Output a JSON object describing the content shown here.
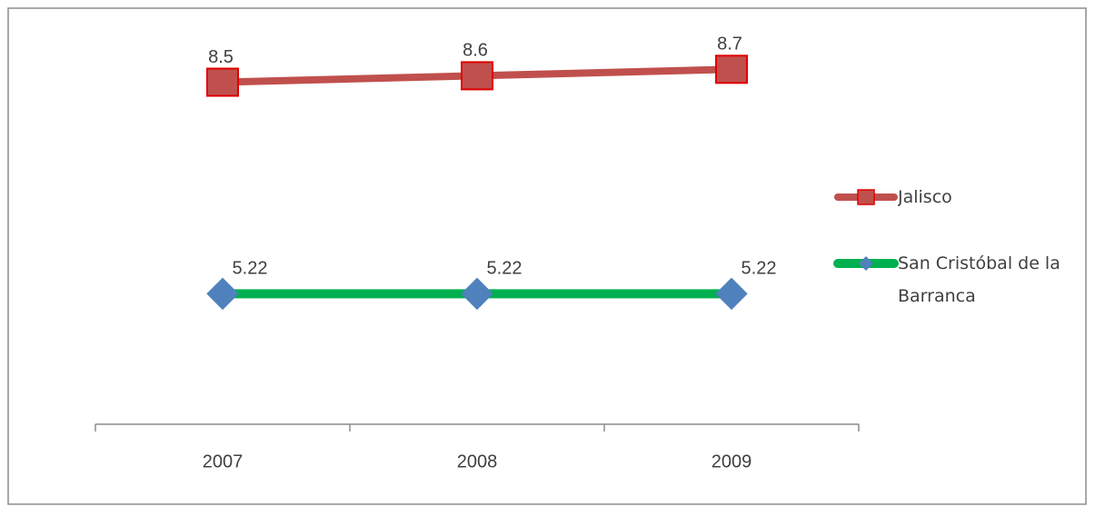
{
  "chart_data": {
    "type": "line",
    "categories": [
      "2007",
      "2008",
      "2009"
    ],
    "series": [
      {
        "name": "Jalisco",
        "color": "#c0504d",
        "marker": "square",
        "marker_color": "#c0504d",
        "marker_edge": "#e00000",
        "values": [
          8.5,
          8.6,
          8.7
        ]
      },
      {
        "name": "San Cristóbal de la Barranca",
        "color": "#00b050",
        "marker": "diamond",
        "marker_color": "#4f81bd",
        "marker_edge": "#4f81bd",
        "values": [
          5.22,
          5.22,
          5.22
        ]
      }
    ],
    "ylim": [
      4,
      9
    ],
    "legend": "right"
  }
}
